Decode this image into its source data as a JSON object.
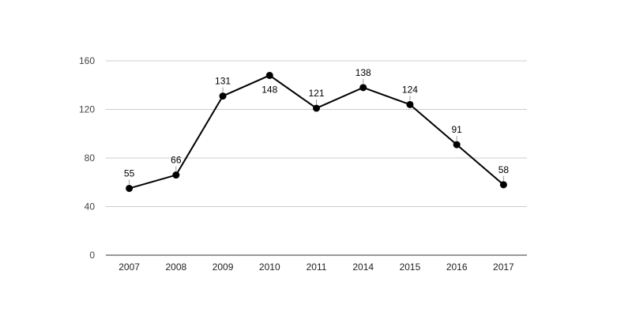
{
  "chart_data": {
    "type": "line",
    "title": "",
    "xlabel": "",
    "ylabel": "",
    "categories": [
      "2007",
      "2008",
      "2009",
      "2010",
      "2011",
      "2014",
      "2015",
      "2016",
      "2017"
    ],
    "series": [
      {
        "values": [
          55,
          66,
          131,
          148,
          121,
          138,
          124,
          91,
          58
        ],
        "color": "#000000"
      }
    ],
    "data_labels": [
      "55",
      "66",
      "131",
      "148",
      "121",
      "138",
      "124",
      "91",
      "58"
    ],
    "yticks": [
      0,
      40,
      80,
      120,
      160
    ],
    "ylim": [
      0,
      160
    ],
    "grid": true,
    "legend": "none"
  }
}
